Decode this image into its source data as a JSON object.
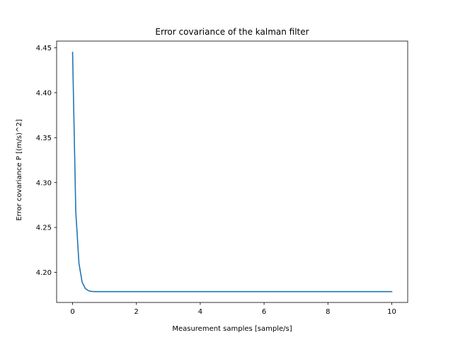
{
  "chart_data": {
    "type": "line",
    "title": "Error covariance of the kalman filter",
    "xlabel": "Measurement samples [sample/s]",
    "ylabel": "Error covariance P [(m/s)^2]",
    "xlim": [
      -0.5,
      10.5
    ],
    "ylim": [
      4.1665,
      4.4575
    ],
    "xticks": [
      0,
      2,
      4,
      6,
      8,
      10
    ],
    "yticks": [
      4.2,
      4.25,
      4.3,
      4.35,
      4.4,
      4.45
    ],
    "ytick_labels": [
      "4.20",
      "4.25",
      "4.30",
      "4.35",
      "4.40",
      "4.45"
    ],
    "grid": false,
    "series": [
      {
        "color": "#1f77b4",
        "x": [
          0.0,
          0.1,
          0.2,
          0.3,
          0.4,
          0.5,
          0.6,
          0.7,
          0.8,
          0.9,
          1.0,
          2.0,
          4.0,
          6.0,
          8.0,
          10.0
        ],
        "y": [
          4.445,
          4.268,
          4.21,
          4.189,
          4.182,
          4.1795,
          4.1788,
          4.1786,
          4.1786,
          4.1786,
          4.1786,
          4.1786,
          4.1786,
          4.1786,
          4.1786,
          4.1786
        ]
      }
    ]
  }
}
